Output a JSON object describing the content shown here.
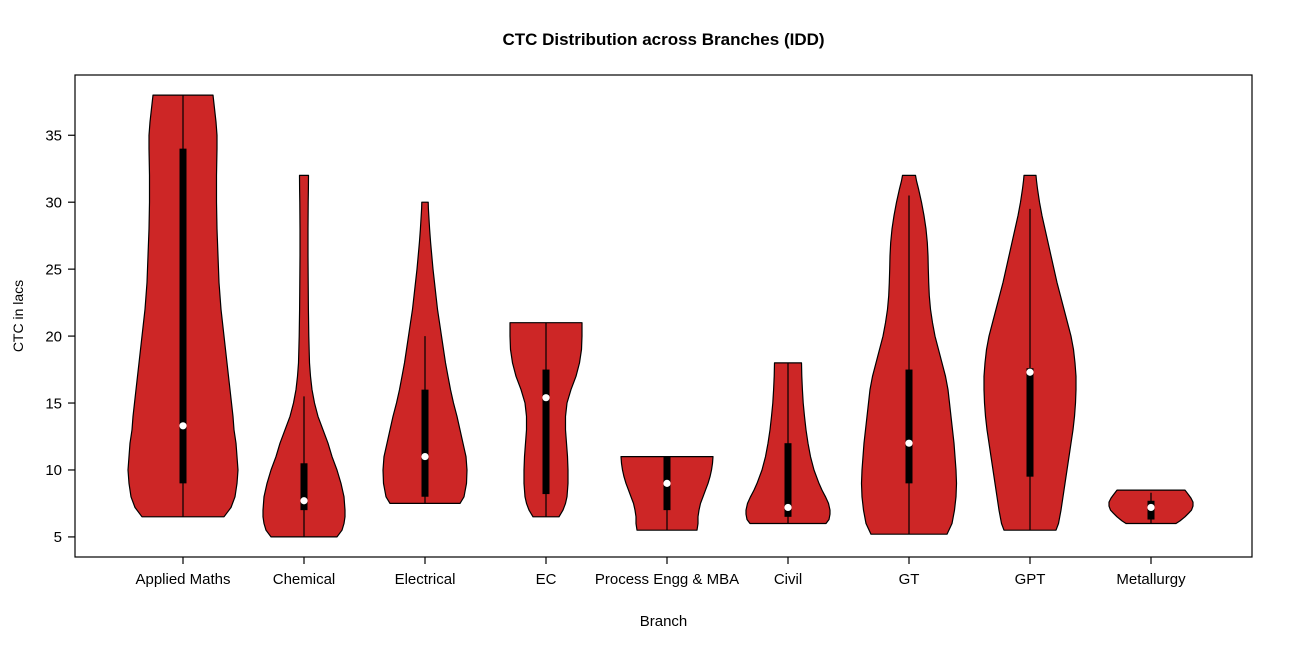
{
  "chart_data": {
    "type": "violin",
    "title": "CTC Distribution across Branches (IDD)",
    "xlabel": "Branch",
    "ylabel": "CTC in lacs",
    "ylim": [
      3.5,
      39.5
    ],
    "yticks": [
      5,
      10,
      15,
      20,
      25,
      30,
      35
    ],
    "grid": false,
    "legend": "none",
    "colors": {
      "violin_fill": "#CD2626",
      "violin_stroke": "#000000",
      "box": "#000000",
      "median_dot": "#FFFFFF",
      "axis": "#000000"
    },
    "categories": [
      "Applied Maths",
      "Chemical",
      "Electrical",
      "EC",
      "Process Engg & MBA",
      "Civil",
      "GT",
      "GPT",
      "Metallurgy"
    ],
    "series": [
      {
        "name": "Applied Maths",
        "min": 6.5,
        "max": 38,
        "q1": 9,
        "median": 13.3,
        "q3": 34,
        "whisker_low": 6.5,
        "whisker_high": 38,
        "profile": [
          [
            6.5,
            41
          ],
          [
            7.2,
            48
          ],
          [
            8,
            52
          ],
          [
            9,
            54
          ],
          [
            10,
            55
          ],
          [
            11,
            54
          ],
          [
            12,
            53
          ],
          [
            13,
            51
          ],
          [
            14,
            50
          ],
          [
            16,
            47
          ],
          [
            18,
            44
          ],
          [
            20,
            41
          ],
          [
            22,
            38
          ],
          [
            24,
            36
          ],
          [
            26,
            35
          ],
          [
            28,
            34
          ],
          [
            30,
            33.5
          ],
          [
            32,
            33.5
          ],
          [
            34,
            34
          ],
          [
            35,
            34
          ],
          [
            36,
            33
          ],
          [
            37,
            31.5
          ],
          [
            38,
            30
          ]
        ]
      },
      {
        "name": "Chemical",
        "min": 5,
        "max": 32,
        "q1": 7,
        "median": 7.7,
        "q3": 10.5,
        "whisker_low": 5,
        "whisker_high": 15.5,
        "profile": [
          [
            5,
            33
          ],
          [
            5.5,
            38
          ],
          [
            6,
            40
          ],
          [
            6.5,
            41
          ],
          [
            7,
            41
          ],
          [
            8,
            40
          ],
          [
            9,
            37
          ],
          [
            10,
            33
          ],
          [
            11,
            28
          ],
          [
            12,
            24
          ],
          [
            13,
            19
          ],
          [
            14,
            14
          ],
          [
            15,
            10.5
          ],
          [
            16,
            8
          ],
          [
            17,
            6.5
          ],
          [
            18,
            5.5
          ],
          [
            20,
            4.8
          ],
          [
            22,
            4.4
          ],
          [
            24,
            4.2
          ],
          [
            26,
            4
          ],
          [
            28,
            4
          ],
          [
            30,
            4.2
          ],
          [
            31,
            4.4
          ],
          [
            32,
            4.5
          ]
        ]
      },
      {
        "name": "Electrical",
        "min": 7.5,
        "max": 30,
        "q1": 8,
        "median": 11,
        "q3": 16,
        "whisker_low": 7.5,
        "whisker_high": 20,
        "profile": [
          [
            7.5,
            35
          ],
          [
            8,
            39
          ],
          [
            9,
            41.5
          ],
          [
            10,
            42
          ],
          [
            11,
            41
          ],
          [
            12,
            38
          ],
          [
            13,
            35
          ],
          [
            14,
            32
          ],
          [
            15,
            28.5
          ],
          [
            16,
            25.5
          ],
          [
            17,
            23
          ],
          [
            18,
            20.5
          ],
          [
            19,
            18.5
          ],
          [
            20,
            16.5
          ],
          [
            21,
            14.5
          ],
          [
            22,
            12.5
          ],
          [
            23,
            11
          ],
          [
            24,
            9.5
          ],
          [
            25,
            8
          ],
          [
            26,
            6.8
          ],
          [
            27,
            5.6
          ],
          [
            28,
            4.6
          ],
          [
            29,
            3.8
          ],
          [
            29.5,
            3.4
          ],
          [
            30,
            3.2
          ]
        ]
      },
      {
        "name": "EC",
        "min": 6.5,
        "max": 21,
        "q1": 8.2,
        "median": 15.4,
        "q3": 17.5,
        "whisker_low": 6.5,
        "whisker_high": 21,
        "profile": [
          [
            6.5,
            13
          ],
          [
            7,
            17
          ],
          [
            7.5,
            19.5
          ],
          [
            8,
            21
          ],
          [
            9,
            22
          ],
          [
            10,
            22
          ],
          [
            11,
            21.5
          ],
          [
            12,
            20.5
          ],
          [
            13,
            19.5
          ],
          [
            14,
            19.5
          ],
          [
            15,
            21
          ],
          [
            16,
            25
          ],
          [
            17,
            30
          ],
          [
            18,
            33.5
          ],
          [
            19,
            35.5
          ],
          [
            20,
            36
          ],
          [
            21,
            36
          ]
        ]
      },
      {
        "name": "Process Engg & MBA",
        "min": 5.5,
        "max": 11,
        "q1": 7,
        "median": 9,
        "q3": 11,
        "whisker_low": 5.5,
        "whisker_high": 11,
        "profile": [
          [
            5.5,
            30
          ],
          [
            6,
            31
          ],
          [
            6.5,
            31
          ],
          [
            7,
            32
          ],
          [
            7.5,
            33.5
          ],
          [
            8,
            36
          ],
          [
            8.5,
            38.5
          ],
          [
            9,
            41
          ],
          [
            9.5,
            43
          ],
          [
            10,
            44.5
          ],
          [
            10.5,
            45.5
          ],
          [
            11,
            46
          ]
        ]
      },
      {
        "name": "Civil",
        "min": 6,
        "max": 18,
        "q1": 6.5,
        "median": 7.2,
        "q3": 12,
        "whisker_low": 6,
        "whisker_high": 18,
        "profile": [
          [
            6,
            38
          ],
          [
            6.3,
            41
          ],
          [
            6.7,
            42
          ],
          [
            7,
            42
          ],
          [
            7.5,
            40.5
          ],
          [
            8,
            37.5
          ],
          [
            8.5,
            34
          ],
          [
            9,
            31
          ],
          [
            9.5,
            28.5
          ],
          [
            10,
            26
          ],
          [
            11,
            22.5
          ],
          [
            12,
            20
          ],
          [
            13,
            18
          ],
          [
            14,
            16.5
          ],
          [
            15,
            15.2
          ],
          [
            16,
            14.4
          ],
          [
            17,
            13.8
          ],
          [
            18,
            13.5
          ]
        ]
      },
      {
        "name": "GT",
        "min": 5.2,
        "max": 32,
        "q1": 9,
        "median": 12,
        "q3": 17.5,
        "whisker_low": 5.2,
        "whisker_high": 30.5,
        "profile": [
          [
            5.2,
            38
          ],
          [
            6,
            43
          ],
          [
            7,
            45.5
          ],
          [
            8,
            47
          ],
          [
            9,
            47.5
          ],
          [
            10,
            47
          ],
          [
            11,
            46
          ],
          [
            12,
            45
          ],
          [
            13,
            43.5
          ],
          [
            14,
            42
          ],
          [
            15,
            40.5
          ],
          [
            16,
            39
          ],
          [
            17,
            36.5
          ],
          [
            18,
            33
          ],
          [
            19,
            29.5
          ],
          [
            20,
            26
          ],
          [
            21,
            23.5
          ],
          [
            22,
            21.5
          ],
          [
            23,
            20.3
          ],
          [
            24,
            19.7
          ],
          [
            25,
            19.3
          ],
          [
            26,
            19
          ],
          [
            27,
            18.3
          ],
          [
            28,
            17
          ],
          [
            29,
            15
          ],
          [
            30,
            12.5
          ],
          [
            31,
            9.5
          ],
          [
            31.6,
            7.5
          ],
          [
            32,
            6.5
          ]
        ]
      },
      {
        "name": "GPT",
        "min": 5.5,
        "max": 32,
        "q1": 9.5,
        "median": 17.3,
        "q3": 17.6,
        "whisker_low": 5.5,
        "whisker_high": 29.5,
        "profile": [
          [
            5.5,
            26
          ],
          [
            6,
            28.5
          ],
          [
            7,
            31
          ],
          [
            8,
            33
          ],
          [
            9,
            35
          ],
          [
            10,
            37
          ],
          [
            11,
            39
          ],
          [
            12,
            41
          ],
          [
            13,
            43
          ],
          [
            14,
            44.5
          ],
          [
            15,
            45.5
          ],
          [
            16,
            46
          ],
          [
            17,
            46
          ],
          [
            18,
            45
          ],
          [
            19,
            43.5
          ],
          [
            20,
            41
          ],
          [
            21,
            37.5
          ],
          [
            22,
            34
          ],
          [
            23,
            30.5
          ],
          [
            24,
            27
          ],
          [
            25,
            24
          ],
          [
            26,
            21
          ],
          [
            27,
            18
          ],
          [
            28,
            15
          ],
          [
            29,
            12
          ],
          [
            30,
            9.5
          ],
          [
            31,
            7.5
          ],
          [
            31.6,
            6.5
          ],
          [
            32,
            6
          ]
        ]
      },
      {
        "name": "Metallurgy",
        "min": 6,
        "max": 8.5,
        "q1": 6.3,
        "median": 7.2,
        "q3": 7.7,
        "whisker_low": 6,
        "whisker_high": 8.3,
        "profile": [
          [
            6,
            25
          ],
          [
            6.2,
            29
          ],
          [
            6.5,
            34
          ],
          [
            6.8,
            38
          ],
          [
            7,
            40.5
          ],
          [
            7.3,
            42
          ],
          [
            7.6,
            42
          ],
          [
            7.9,
            40
          ],
          [
            8.1,
            38
          ],
          [
            8.3,
            36
          ],
          [
            8.5,
            34
          ]
        ]
      }
    ]
  }
}
